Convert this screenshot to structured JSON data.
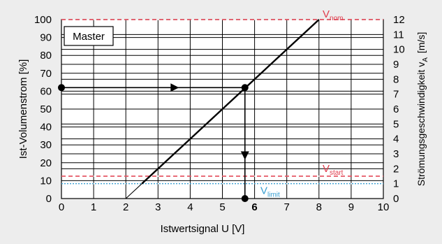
{
  "chart_data": {
    "type": "line",
    "xlabel": "Istwertsignal U [V]",
    "ylabel": "Ist-Volumenstrom [%]",
    "ylabel_right": "Strömungsgeschwindigkeit v",
    "ylabel_right_sub": "A",
    "ylabel_right_unit": "[m/s]",
    "xlim": [
      0,
      10
    ],
    "ylim": [
      0,
      100
    ],
    "ylim_right": [
      0,
      12
    ],
    "x_ticks": [
      "0",
      "1",
      "2",
      "3",
      "4",
      "5",
      "6",
      "7",
      "8",
      "9",
      "10"
    ],
    "highlighted_x_tick": "6",
    "y_ticks": [
      "0",
      "10",
      "20",
      "30",
      "40",
      "50",
      "60",
      "70",
      "80",
      "90",
      "100"
    ],
    "y_ticks_right": [
      "0",
      "1",
      "2",
      "3",
      "4",
      "5",
      "6",
      "7",
      "8",
      "9",
      "10",
      "11",
      "12"
    ],
    "grid": true,
    "legend_box": "Master",
    "series": [
      {
        "x": [
          2,
          8
        ],
        "y": [
          0,
          100
        ],
        "style": "thin"
      },
      {
        "x": [
          2.5,
          8
        ],
        "y": [
          8.33,
          100
        ],
        "style": "thick"
      }
    ],
    "reference_lines": [
      {
        "label_main": "V",
        "label_sub": "nom",
        "y": 100,
        "color": "#e03c4c",
        "style": "dashed"
      },
      {
        "label_main": "V",
        "label_sub": "start",
        "y": 12.5,
        "color": "#e03c4c",
        "style": "dashed"
      },
      {
        "label_main": "V",
        "label_sub": "limit",
        "y": 8.33,
        "color": "#3aa0d2",
        "style": "dotted"
      }
    ],
    "example": {
      "x": 5.7,
      "y": 62,
      "points": [
        [
          0,
          62
        ],
        [
          5.7,
          62
        ],
        [
          5.7,
          0
        ]
      ]
    },
    "colors": {
      "plot_bg": "#ffffff",
      "page_bg": "#ededed",
      "grid": "#000000"
    }
  }
}
